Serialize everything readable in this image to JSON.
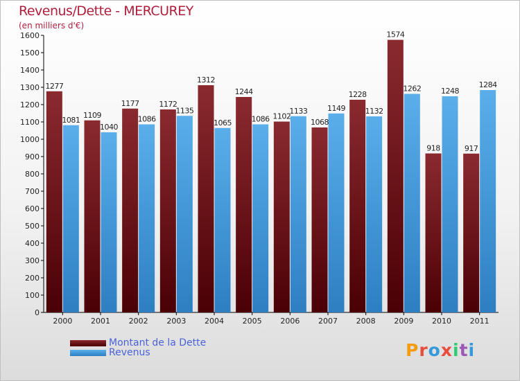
{
  "title": "Revenus/Dette - MERCUREY",
  "subtitle": "(en milliers d'€)",
  "legend": {
    "dette_label": "Montant de la Dette",
    "revenus_label": "Revenus"
  },
  "logo": {
    "letters": [
      "P",
      "r",
      "o",
      "x",
      "i",
      "t",
      "i"
    ],
    "colors": [
      "#f39c12",
      "#e74c3c",
      "#3498db",
      "#e74c3c",
      "#2ecc71",
      "#9b59b6",
      "#3498db"
    ]
  },
  "colors": {
    "dette": "#6b0d12",
    "revenus": "#4ea3e2"
  },
  "chart_data": {
    "type": "bar",
    "categories": [
      "2000",
      "2001",
      "2002",
      "2003",
      "2004",
      "2005",
      "2006",
      "2007",
      "2008",
      "2009",
      "2010",
      "2011"
    ],
    "series": [
      {
        "name": "Montant de la Dette",
        "values": [
          1277,
          1109,
          1177,
          1172,
          1312,
          1244,
          1102,
          1068,
          1228,
          1574,
          918,
          917
        ]
      },
      {
        "name": "Revenus",
        "values": [
          1081,
          1040,
          1086,
          1135,
          1065,
          1086,
          1133,
          1149,
          1132,
          1262,
          1248,
          1284
        ]
      }
    ],
    "title": "Revenus/Dette - MERCUREY",
    "subtitle": "(en milliers d'€)",
    "ylim": [
      0,
      1600
    ],
    "yticks": [
      0,
      100,
      200,
      300,
      400,
      500,
      600,
      700,
      800,
      900,
      1000,
      1100,
      1200,
      1300,
      1400,
      1500,
      1600
    ],
    "grid": false,
    "legend_position": "bottom-left"
  }
}
